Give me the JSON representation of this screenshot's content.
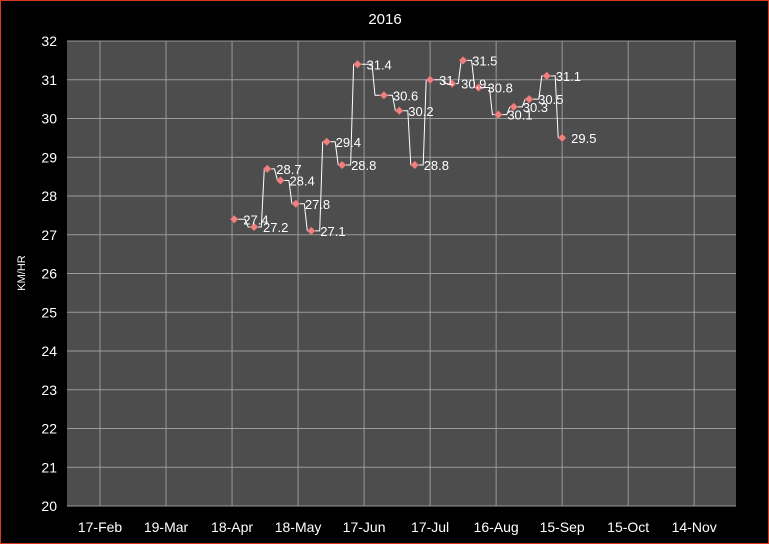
{
  "chart_data": {
    "type": "line",
    "title": "2016",
    "ylabel": "KM/HR",
    "xlabel": "",
    "ylim": [
      20,
      32
    ],
    "y_ticks": [
      20,
      21,
      22,
      23,
      24,
      25,
      26,
      27,
      28,
      29,
      30,
      31,
      32
    ],
    "x_ticks": [
      "17-Feb",
      "19-Mar",
      "18-Apr",
      "18-May",
      "17-Jun",
      "17-Jul",
      "16-Aug",
      "15-Sep",
      "15-Oct",
      "14-Nov"
    ],
    "xlim": [
      "2016-02-02",
      "2016-12-02"
    ],
    "grid": true,
    "legend": "none",
    "colors": {
      "background": "#000000",
      "plot_area": "#4d4d4d",
      "grid": "#9a9a9a",
      "line": "#ffffff",
      "marker": "#f08080",
      "border": "#d9381e"
    },
    "series": [
      {
        "points": [
          {
            "x": "2016-04-18",
            "y": 27.4
          },
          {
            "x": "2016-04-27",
            "y": 27.2
          },
          {
            "x": "2016-05-03",
            "y": 28.7
          },
          {
            "x": "2016-05-09",
            "y": 28.4
          },
          {
            "x": "2016-05-16",
            "y": 27.8
          },
          {
            "x": "2016-05-23",
            "y": 27.1
          },
          {
            "x": "2016-05-30",
            "y": 29.4
          },
          {
            "x": "2016-06-06",
            "y": 28.8
          },
          {
            "x": "2016-06-13",
            "y": 31.4
          },
          {
            "x": "2016-06-25",
            "y": 30.6
          },
          {
            "x": "2016-07-02",
            "y": 30.2
          },
          {
            "x": "2016-07-09",
            "y": 28.8
          },
          {
            "x": "2016-07-16",
            "y": 31.0
          },
          {
            "x": "2016-07-26",
            "y": 30.9
          },
          {
            "x": "2016-07-31",
            "y": 31.5
          },
          {
            "x": "2016-08-07",
            "y": 30.8
          },
          {
            "x": "2016-08-16",
            "y": 30.1
          },
          {
            "x": "2016-08-23",
            "y": 30.3
          },
          {
            "x": "2016-08-30",
            "y": 30.5
          },
          {
            "x": "2016-09-07",
            "y": 31.1
          },
          {
            "x": "2016-09-14",
            "y": 29.5
          }
        ]
      }
    ]
  },
  "data_labels": [
    "27.4",
    "27.2",
    "28.7",
    "28.4",
    "27.8",
    "27.1",
    "29.4",
    "28.8",
    "31.4",
    "30.6",
    "30.2",
    "28.8",
    "31",
    "30.9",
    "31.5",
    "30.8",
    "30.1",
    "30.3",
    "30.5",
    "31.1",
    "29.5"
  ]
}
